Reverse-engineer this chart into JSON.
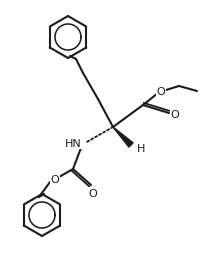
{
  "bg": "#ffffff",
  "lc": "#1c1c1c",
  "lw": 1.5,
  "fs": 8.0,
  "SC": [
    113,
    128
  ],
  "benz1_c": [
    68,
    38
  ],
  "benz1_r": 21,
  "benz2_c": [
    42,
    216
  ],
  "benz2_r": 21
}
